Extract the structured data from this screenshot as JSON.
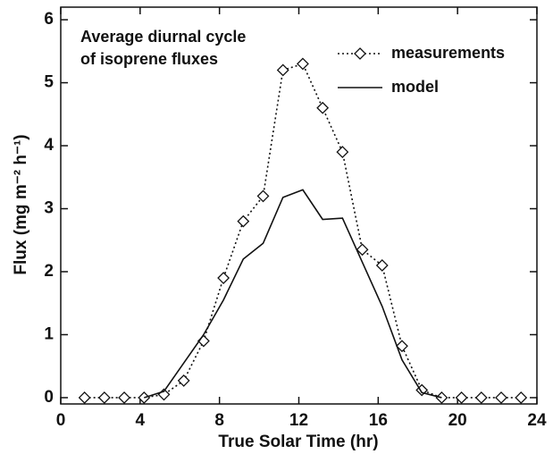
{
  "chart_data": {
    "type": "line",
    "annotation": [
      "Average diurnal cycle",
      "of isoprene fluxes"
    ],
    "x_label": "True Solar Time (hr)",
    "y_label": "Flux (mg m⁻² h⁻¹)",
    "x": [
      1.2,
      2.2,
      3.2,
      4.2,
      5.2,
      6.2,
      7.2,
      8.2,
      9.2,
      10.2,
      11.2,
      12.2,
      13.2,
      14.2,
      15.2,
      16.2,
      17.2,
      18.2,
      19.2,
      20.2,
      21.2,
      22.2,
      23.2
    ],
    "series": [
      {
        "name": "measurements",
        "color": "#111111",
        "dash": "dotted",
        "marker": "diamond",
        "values": [
          0,
          0,
          0,
          0,
          0.05,
          0.27,
          0.9,
          1.9,
          2.8,
          3.2,
          5.2,
          5.3,
          4.6,
          3.9,
          2.35,
          2.1,
          0.82,
          0.12,
          0,
          0,
          0,
          0,
          0
        ]
      },
      {
        "name": "model",
        "color": "#111111",
        "dash": "solid",
        "marker": "none",
        "values": [
          null,
          null,
          null,
          0,
          0.1,
          0.55,
          1.0,
          1.55,
          2.2,
          2.45,
          3.18,
          3.3,
          2.83,
          2.85,
          2.15,
          1.45,
          0.6,
          0.08,
          0,
          null,
          null,
          null,
          null
        ]
      }
    ],
    "xlim": [
      0,
      24
    ],
    "xticks": [
      0,
      4,
      8,
      12,
      16,
      20,
      24
    ],
    "ylim": [
      -0.1,
      6.2
    ],
    "yticks": [
      0,
      1,
      2,
      3,
      4,
      5,
      6
    ],
    "grid": false,
    "legend": "upper right"
  }
}
